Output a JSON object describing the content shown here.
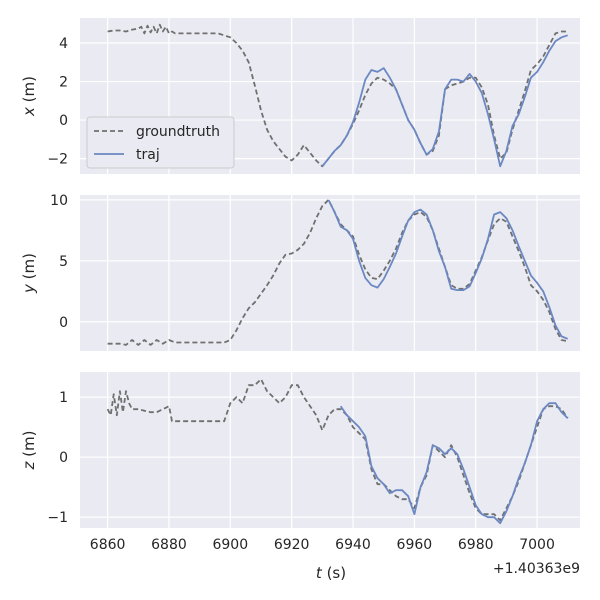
{
  "chart_data": [
    {
      "type": "line",
      "ylabel_var": "x",
      "ylabel_unit": " (m)",
      "ylim": [
        -2.8,
        5.3
      ],
      "yticks": [
        4,
        2,
        0,
        -2
      ],
      "ytick_labels": [
        "4",
        "2",
        "0",
        "−2"
      ],
      "legend": {
        "placement": "lower-left",
        "entries": [
          "groundtruth",
          "traj"
        ]
      },
      "series": [
        {
          "name": "groundtruth",
          "color": "#707070",
          "dash": true,
          "x": [
            6860,
            6862,
            6864,
            6866,
            6868,
            6870,
            6871,
            6872,
            6873,
            6874,
            6875,
            6876,
            6877,
            6878,
            6879,
            6880,
            6881,
            6882,
            6884,
            6888,
            6892,
            6896,
            6900,
            6902,
            6904,
            6906,
            6908,
            6910,
            6912,
            6914,
            6916,
            6918,
            6920,
            6922,
            6924,
            6926,
            6928,
            6930,
            6932,
            6934,
            6936,
            6938,
            6940,
            6942,
            6944,
            6946,
            6948,
            6950,
            6952,
            6954,
            6956,
            6958,
            6960,
            6962,
            6964,
            6966,
            6968,
            6970,
            6972,
            6974,
            6976,
            6978,
            6980,
            6982,
            6984,
            6986,
            6988,
            6990,
            6992,
            6994,
            6996,
            6998,
            7000,
            7002,
            7004,
            7006,
            7008,
            7010
          ],
          "y": [
            4.6,
            4.65,
            4.65,
            4.6,
            4.7,
            4.75,
            4.85,
            4.5,
            4.9,
            4.55,
            4.85,
            4.5,
            4.95,
            4.6,
            4.85,
            4.5,
            4.6,
            4.5,
            4.5,
            4.5,
            4.5,
            4.5,
            4.3,
            4.0,
            3.6,
            3.0,
            1.8,
            0.5,
            -0.5,
            -1.1,
            -1.5,
            -1.9,
            -2.1,
            -1.8,
            -1.3,
            -1.7,
            -2.1,
            -2.4,
            -2.0,
            -1.6,
            -1.3,
            -0.8,
            -0.2,
            0.5,
            1.3,
            1.9,
            2.2,
            2.1,
            1.9,
            1.6,
            0.8,
            0.0,
            -0.5,
            -1.2,
            -1.8,
            -1.6,
            -0.8,
            1.6,
            1.8,
            1.9,
            2.0,
            2.2,
            2.2,
            1.7,
            0.8,
            -0.8,
            -2.0,
            -1.7,
            -0.5,
            0.5,
            1.5,
            2.6,
            2.9,
            3.3,
            3.9,
            4.5,
            4.6,
            4.6
          ]
        },
        {
          "name": "traj",
          "color": "#6b88c2",
          "dash": false,
          "x": [
            6930,
            6932,
            6934,
            6936,
            6938,
            6940,
            6942,
            6944,
            6946,
            6948,
            6950,
            6952,
            6954,
            6956,
            6958,
            6960,
            6962,
            6964,
            6966,
            6968,
            6970,
            6972,
            6974,
            6976,
            6978,
            6980,
            6982,
            6984,
            6986,
            6988,
            6990,
            6992,
            6994,
            6996,
            6998,
            7000,
            7002,
            7004,
            7006,
            7008,
            7010
          ],
          "y": [
            -2.4,
            -2.0,
            -1.6,
            -1.3,
            -0.8,
            -0.1,
            0.9,
            2.1,
            2.6,
            2.5,
            2.7,
            2.2,
            1.6,
            0.8,
            0.0,
            -0.5,
            -1.2,
            -1.8,
            -1.5,
            -0.6,
            1.6,
            2.1,
            2.1,
            2.0,
            2.4,
            2.0,
            1.4,
            0.3,
            -1.0,
            -2.4,
            -1.6,
            -0.3,
            0.3,
            1.2,
            2.2,
            2.5,
            3.0,
            3.6,
            4.1,
            4.3,
            4.4
          ]
        }
      ]
    },
    {
      "type": "line",
      "ylabel_var": "y",
      "ylabel_unit": " (m)",
      "ylim": [
        -2.4,
        10.4
      ],
      "yticks": [
        10,
        5,
        0
      ],
      "ytick_labels": [
        "10",
        "5",
        "0"
      ],
      "series": [
        {
          "name": "groundtruth",
          "color": "#707070",
          "dash": true,
          "x": [
            6860,
            6864,
            6866,
            6868,
            6870,
            6872,
            6874,
            6876,
            6878,
            6880,
            6882,
            6884,
            6888,
            6892,
            6896,
            6898,
            6900,
            6902,
            6904,
            6906,
            6908,
            6910,
            6912,
            6914,
            6916,
            6918,
            6920,
            6922,
            6924,
            6926,
            6928,
            6930,
            6932,
            6934,
            6936,
            6938,
            6940,
            6942,
            6944,
            6946,
            6948,
            6950,
            6952,
            6954,
            6956,
            6958,
            6960,
            6962,
            6964,
            6966,
            6968,
            6970,
            6972,
            6974,
            6976,
            6978,
            6980,
            6982,
            6984,
            6986,
            6988,
            6990,
            6992,
            6994,
            6996,
            6998,
            7000,
            7002,
            7004,
            7006,
            7008,
            7010
          ],
          "y": [
            -1.8,
            -1.8,
            -1.9,
            -1.5,
            -1.9,
            -1.5,
            -1.9,
            -1.5,
            -1.8,
            -1.5,
            -1.7,
            -1.7,
            -1.7,
            -1.7,
            -1.7,
            -1.7,
            -1.5,
            -0.7,
            0.3,
            1.1,
            1.6,
            2.3,
            3.0,
            3.8,
            4.8,
            5.5,
            5.6,
            5.9,
            6.4,
            7.3,
            8.5,
            9.5,
            10.0,
            9.0,
            8.0,
            7.5,
            7.0,
            5.5,
            4.3,
            3.6,
            3.5,
            4.2,
            5.0,
            6.0,
            7.3,
            8.3,
            8.8,
            9.0,
            8.6,
            7.5,
            6.0,
            4.5,
            3.0,
            2.7,
            2.7,
            3.1,
            4.2,
            5.3,
            6.7,
            8.0,
            8.5,
            8.2,
            7.0,
            5.8,
            4.5,
            3.0,
            2.5,
            1.8,
            0.8,
            -0.6,
            -1.5,
            -1.6
          ]
        },
        {
          "name": "traj",
          "color": "#6b88c2",
          "dash": false,
          "x": [
            6932,
            6934,
            6936,
            6938,
            6940,
            6942,
            6944,
            6946,
            6948,
            6950,
            6952,
            6954,
            6956,
            6958,
            6960,
            6962,
            6964,
            6966,
            6968,
            6970,
            6972,
            6974,
            6976,
            6978,
            6980,
            6982,
            6984,
            6986,
            6988,
            6990,
            6992,
            6994,
            6996,
            6998,
            7000,
            7002,
            7004,
            7006,
            7008,
            7010
          ],
          "y": [
            10.0,
            9.0,
            7.8,
            7.5,
            6.8,
            5.0,
            3.6,
            3.0,
            2.8,
            3.5,
            4.5,
            5.6,
            7.0,
            8.3,
            9.0,
            9.2,
            8.8,
            7.5,
            5.8,
            4.5,
            2.7,
            2.6,
            2.6,
            2.9,
            4.0,
            5.2,
            6.8,
            8.8,
            9.0,
            8.5,
            7.5,
            6.2,
            5.0,
            3.8,
            3.2,
            2.5,
            1.2,
            -0.3,
            -1.2,
            -1.4
          ]
        }
      ]
    },
    {
      "type": "line",
      "ylabel_var": "z",
      "ylabel_unit": " (m)",
      "ylim": [
        -1.18,
        1.42
      ],
      "yticks": [
        1,
        0,
        -1
      ],
      "ytick_labels": [
        "1",
        "0",
        "−1"
      ],
      "xlabel_var": "t",
      "xlabel_unit": " (s)",
      "xlim": [
        6851,
        7014
      ],
      "xticks": [
        6860,
        6880,
        6900,
        6920,
        6940,
        6960,
        6980,
        7000
      ],
      "xtick_labels": [
        "6860",
        "6880",
        "6900",
        "6920",
        "6940",
        "6960",
        "6980",
        "7000"
      ],
      "x_offset_label": "+1.40363e9",
      "series": [
        {
          "name": "groundtruth",
          "color": "#707070",
          "dash": true,
          "x": [
            6860,
            6861,
            6862,
            6863,
            6864,
            6865,
            6866,
            6867,
            6868,
            6870,
            6874,
            6876,
            6878,
            6880,
            6881,
            6882,
            6884,
            6888,
            6892,
            6896,
            6898,
            6900,
            6902,
            6904,
            6906,
            6908,
            6910,
            6912,
            6914,
            6916,
            6918,
            6920,
            6922,
            6924,
            6926,
            6928,
            6930,
            6932,
            6934,
            6936,
            6938,
            6940,
            6942,
            6944,
            6946,
            6948,
            6950,
            6952,
            6954,
            6956,
            6958,
            6960,
            6962,
            6964,
            6966,
            6968,
            6970,
            6972,
            6974,
            6976,
            6978,
            6980,
            6982,
            6984,
            6986,
            6988,
            6990,
            6992,
            6994,
            6996,
            6998,
            7000,
            7002,
            7004,
            7006,
            7008,
            7010
          ],
          "y": [
            0.8,
            0.7,
            1.05,
            0.7,
            1.1,
            0.75,
            1.1,
            0.9,
            0.8,
            0.8,
            0.75,
            0.75,
            0.8,
            0.85,
            0.6,
            0.6,
            0.6,
            0.6,
            0.6,
            0.6,
            0.6,
            0.9,
            1.0,
            0.9,
            1.2,
            1.2,
            1.3,
            1.1,
            1.0,
            0.9,
            1.0,
            1.2,
            1.2,
            1.0,
            0.85,
            0.7,
            0.45,
            0.7,
            0.8,
            0.8,
            0.7,
            0.5,
            0.4,
            0.3,
            -0.2,
            -0.45,
            -0.45,
            -0.55,
            -0.65,
            -0.7,
            -0.7,
            -0.85,
            -0.5,
            -0.3,
            0.2,
            0.1,
            0.0,
            0.2,
            0.0,
            -0.3,
            -0.6,
            -0.85,
            -0.95,
            -0.95,
            -0.95,
            -1.05,
            -0.85,
            -0.65,
            -0.4,
            -0.1,
            0.2,
            0.5,
            0.8,
            0.85,
            0.85,
            0.8,
            0.65
          ]
        },
        {
          "name": "traj",
          "color": "#6b88c2",
          "dash": false,
          "x": [
            6936,
            6938,
            6940,
            6942,
            6944,
            6946,
            6948,
            6950,
            6952,
            6954,
            6956,
            6958,
            6960,
            6962,
            6964,
            6966,
            6968,
            6970,
            6972,
            6974,
            6976,
            6978,
            6980,
            6982,
            6984,
            6986,
            6988,
            6990,
            6992,
            6994,
            6996,
            6998,
            7000,
            7002,
            7004,
            7006,
            7008,
            7010
          ],
          "y": [
            0.85,
            0.7,
            0.6,
            0.5,
            0.35,
            -0.15,
            -0.35,
            -0.45,
            -0.6,
            -0.55,
            -0.55,
            -0.65,
            -0.95,
            -0.5,
            -0.25,
            0.2,
            0.15,
            0.05,
            0.15,
            0.05,
            -0.2,
            -0.5,
            -0.8,
            -0.95,
            -1.0,
            -1.0,
            -1.1,
            -0.9,
            -0.65,
            -0.35,
            -0.1,
            0.2,
            0.6,
            0.8,
            0.9,
            0.9,
            0.75,
            0.65
          ]
        }
      ]
    }
  ]
}
